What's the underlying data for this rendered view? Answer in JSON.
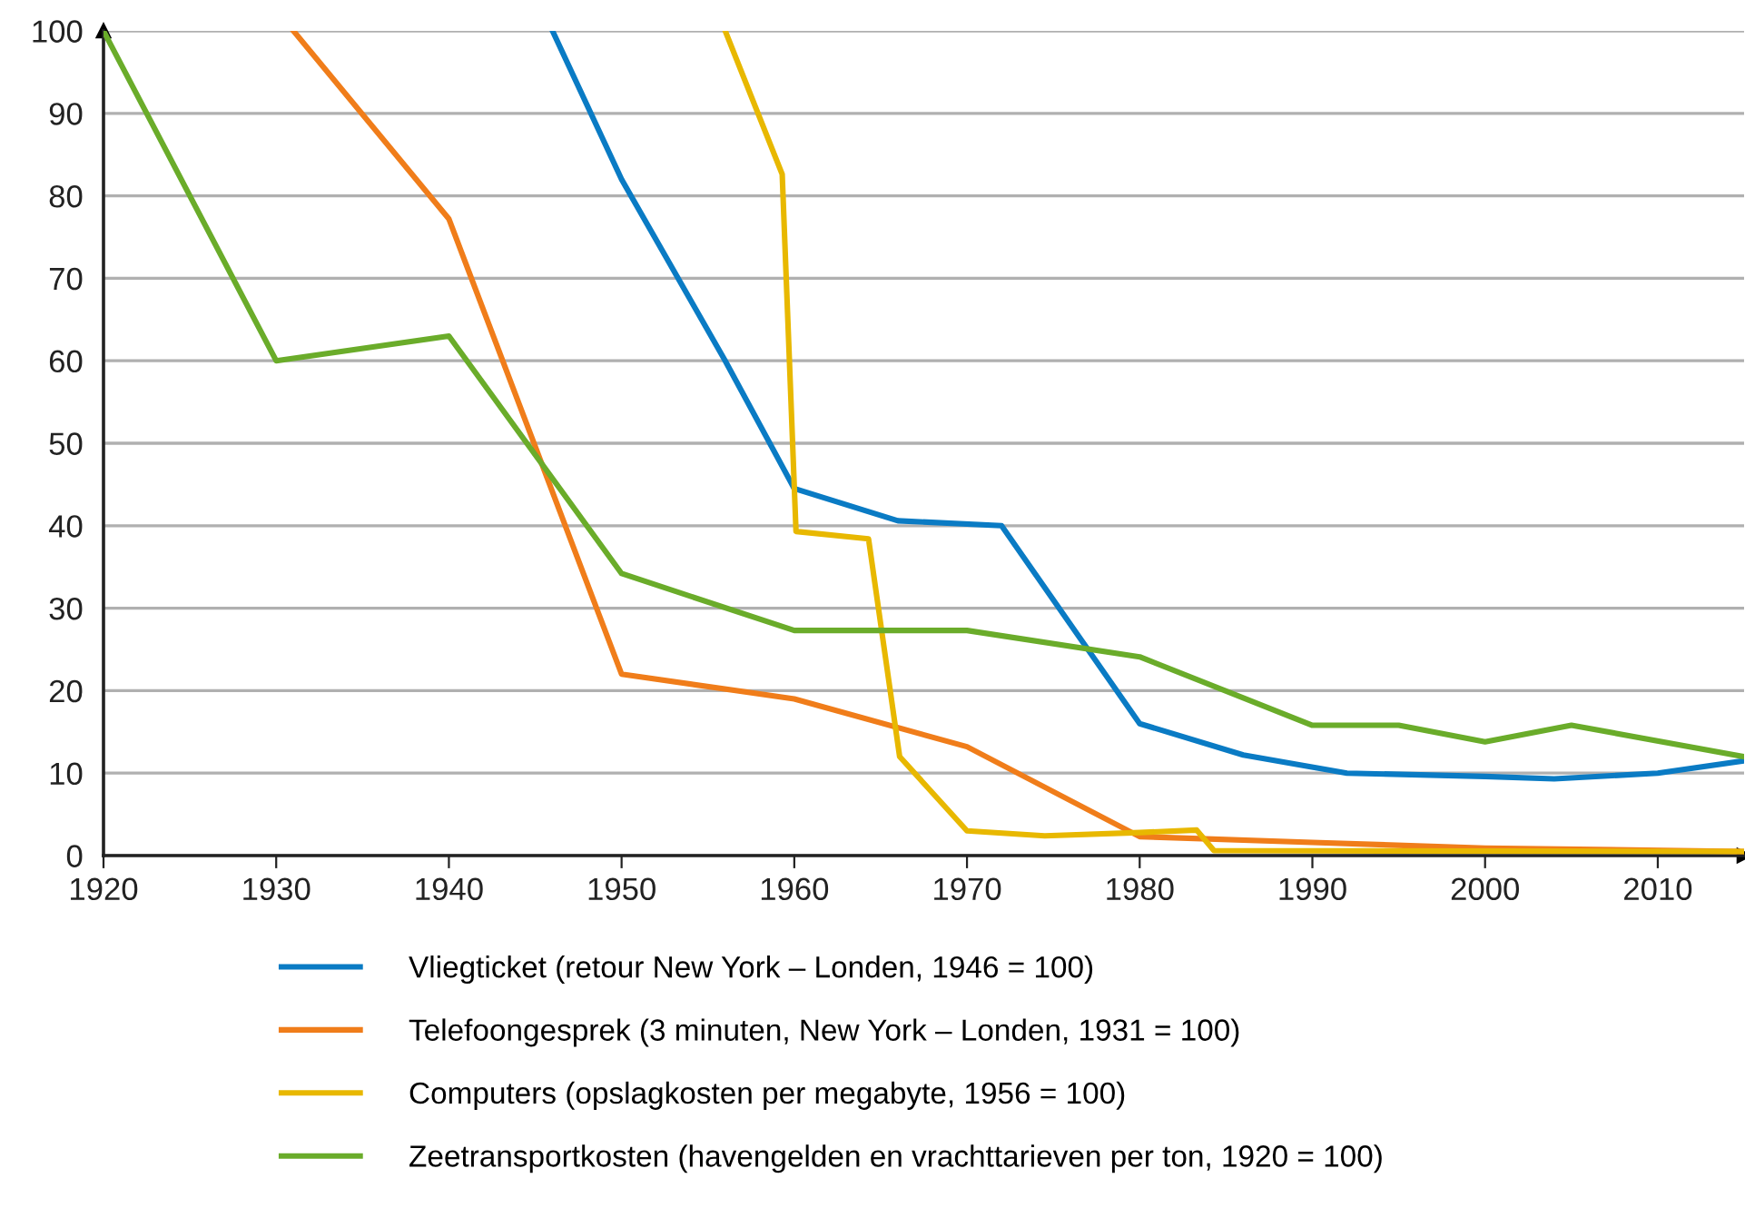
{
  "chart_data": {
    "type": "line",
    "xlim": [
      1920,
      2015
    ],
    "ylim": [
      0,
      100
    ],
    "xticks": [
      1920,
      1930,
      1940,
      1950,
      1960,
      1970,
      1980,
      1990,
      2000,
      2010
    ],
    "yticks": [
      0,
      10,
      20,
      30,
      40,
      50,
      60,
      70,
      80,
      90,
      100
    ],
    "grid": "y",
    "legend": "bottom",
    "marker": "none",
    "line_style": "solid",
    "series": [
      {
        "name": "Vliegticket (retour New York – Londen, 1946 = 100)",
        "color": "#0a7bc4",
        "x": [
          1946,
          1950,
          1956,
          1960,
          1966,
          1972,
          1980,
          1986,
          1992,
          2000,
          2004,
          2010,
          2015
        ],
        "values": [
          100,
          82,
          60,
          44.5,
          40.6,
          40,
          16,
          12.2,
          10,
          9.6,
          9.3,
          10,
          11.5
        ]
      },
      {
        "name": "Telefoongesprek (3 minuten, New York – Londen, 1931 = 100)",
        "color": "#f07d1a",
        "x": [
          1931,
          1940,
          1950,
          1960,
          1970,
          1980,
          1990,
          2000,
          2015
        ],
        "values": [
          100,
          77.2,
          22,
          19,
          13.2,
          2.3,
          1.6,
          0.9,
          0.5
        ]
      },
      {
        "name": "Computers (opslagkosten per megabyte, 1956 = 100)",
        "color": "#e8b800",
        "x": [
          1956,
          1959.3,
          1960.1,
          1964.3,
          1966.1,
          1970,
          1974.5,
          1980,
          1983.3,
          1984.3,
          2015
        ],
        "values": [
          100,
          82.6,
          39.3,
          38.4,
          12,
          3,
          2.4,
          2.8,
          3.1,
          0.6,
          0.5
        ]
      },
      {
        "name": "Zeetransportkosten (havengelden en vrachttarieven per ton, 1920 = 100)",
        "color": "#6aac2a",
        "x": [
          1920,
          1930,
          1940,
          1950,
          1960,
          1970,
          1980,
          1990,
          1995,
          2000,
          2005,
          2015
        ],
        "values": [
          100,
          60,
          63,
          34.2,
          27.3,
          27.3,
          24.1,
          15.8,
          15.8,
          13.8,
          15.8,
          12
        ]
      }
    ]
  }
}
